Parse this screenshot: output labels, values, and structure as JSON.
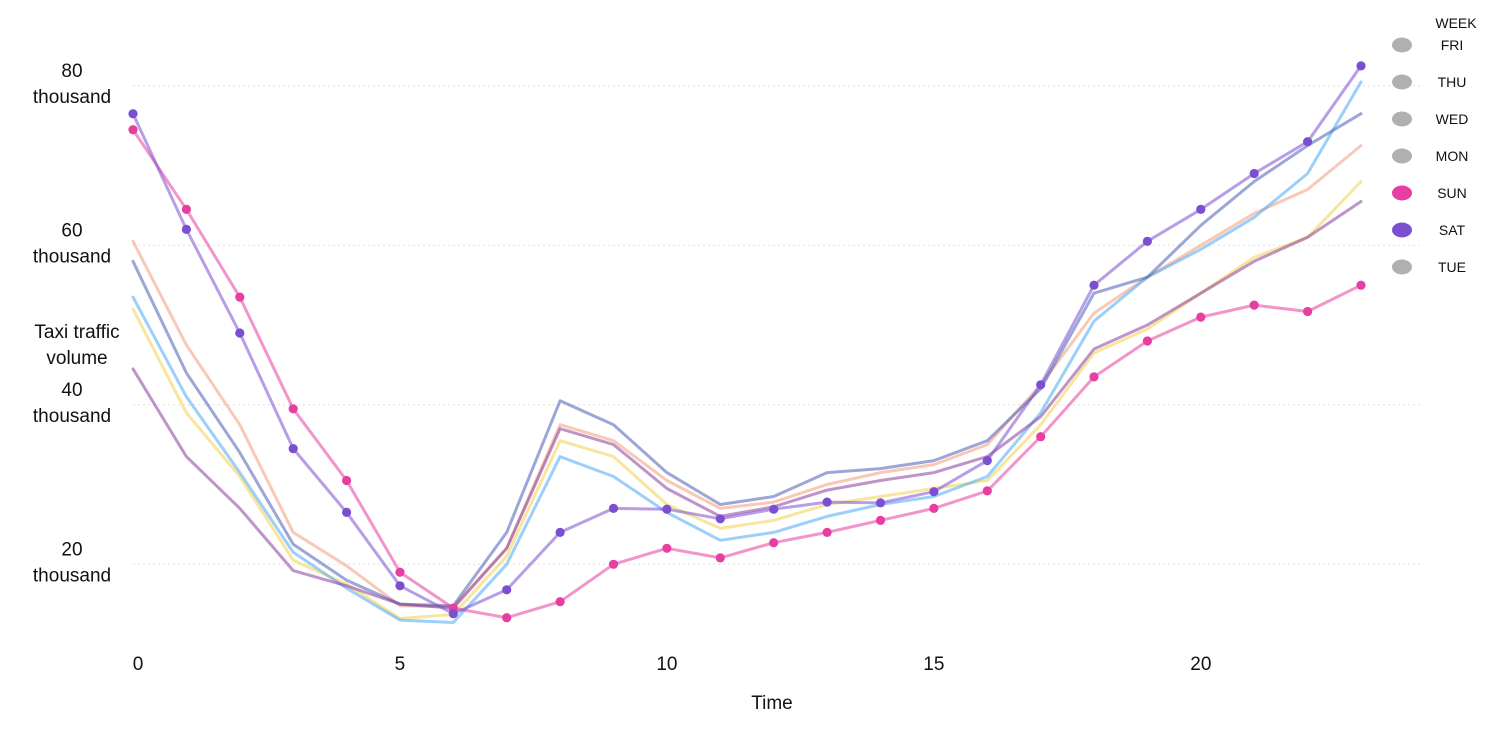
{
  "chart_data": {
    "type": "line",
    "title": "",
    "xlabel": "Time",
    "ylabel": "Taxi traffic volume",
    "xlim": [
      0,
      23
    ],
    "ylim": [
      10500,
      86000
    ],
    "x": [
      0,
      1,
      2,
      3,
      4,
      5,
      6,
      7,
      8,
      9,
      10,
      11,
      12,
      13,
      14,
      15,
      16,
      17,
      18,
      19,
      20,
      21,
      22,
      23
    ],
    "x_ticks": [
      {
        "value": 0,
        "label": "0"
      },
      {
        "value": 5,
        "label": "5"
      },
      {
        "value": 10,
        "label": "10"
      },
      {
        "value": 15,
        "label": "15"
      },
      {
        "value": 20,
        "label": "20"
      }
    ],
    "y_ticks": [
      {
        "value": 20000,
        "line1": "20",
        "line2": "thousand"
      },
      {
        "value": 40000,
        "line1": "40",
        "line2": "thousand"
      },
      {
        "value": 60000,
        "line1": "60",
        "line2": "thousand"
      },
      {
        "value": 80000,
        "line1": "80",
        "line2": "thousand"
      }
    ],
    "ylabel_lines": [
      "Taxi traffic",
      "volume"
    ],
    "grid": true,
    "legend": {
      "title": "WEEK",
      "position": "top-right"
    },
    "series": [
      {
        "name": "FRI",
        "color": "#f39c7c",
        "markers": false,
        "values": [
          60500,
          47500,
          37500,
          24000,
          19800,
          14800,
          14700,
          22000,
          37500,
          35500,
          30500,
          27000,
          27800,
          30000,
          31500,
          32500,
          35000,
          42500,
          51500,
          56000,
          60000,
          64000,
          67000,
          72500
        ]
      },
      {
        "name": "THU",
        "color": "#f2d14f",
        "markers": false,
        "values": [
          52000,
          39000,
          31000,
          20500,
          17500,
          13200,
          13700,
          21000,
          35500,
          33500,
          27500,
          24500,
          25500,
          27500,
          28500,
          29500,
          30500,
          37500,
          46500,
          49500,
          54000,
          58500,
          61000,
          68000
        ]
      },
      {
        "name": "WED",
        "color": "#4aa8f5",
        "markers": false,
        "values": [
          53500,
          41000,
          31500,
          21500,
          17000,
          13000,
          12700,
          20000,
          33500,
          31000,
          26500,
          23000,
          24000,
          26000,
          27500,
          28500,
          31000,
          39000,
          50500,
          56000,
          59500,
          63500,
          69000,
          80500
        ]
      },
      {
        "name": "MON",
        "color": "#4b5fb7",
        "markers": false,
        "values": [
          58000,
          44000,
          34000,
          22500,
          18000,
          15000,
          14800,
          24000,
          40500,
          37500,
          31500,
          27500,
          28500,
          31500,
          32000,
          33000,
          35500,
          42000,
          54000,
          56000,
          62500,
          68000,
          72500,
          76500
        ]
      },
      {
        "name": "SUN",
        "color": "#e63ea1",
        "markers": true,
        "values": [
          74500,
          64500,
          53500,
          39500,
          30500,
          19000,
          14500,
          13300,
          15300,
          20000,
          22000,
          20800,
          22700,
          24000,
          25500,
          27000,
          29200,
          36000,
          43500,
          48000,
          51000,
          52500,
          51700,
          55000
        ]
      },
      {
        "name": "SAT",
        "color": "#7c4fd1",
        "markers": true,
        "values": [
          76500,
          62000,
          49000,
          34500,
          26500,
          17300,
          13800,
          16800,
          24000,
          27000,
          26900,
          25700,
          26900,
          27800,
          27700,
          29100,
          33000,
          42500,
          55000,
          60500,
          64500,
          69000,
          73000,
          82500
        ]
      },
      {
        "name": "TUE",
        "color": "#8a3d9c",
        "markers": false,
        "values": [
          44500,
          33500,
          27000,
          19200,
          17300,
          15000,
          14500,
          22000,
          37000,
          35000,
          29500,
          26000,
          27200,
          29300,
          30500,
          31500,
          33500,
          38500,
          47000,
          50000,
          54000,
          58000,
          61000,
          65500
        ]
      }
    ]
  }
}
